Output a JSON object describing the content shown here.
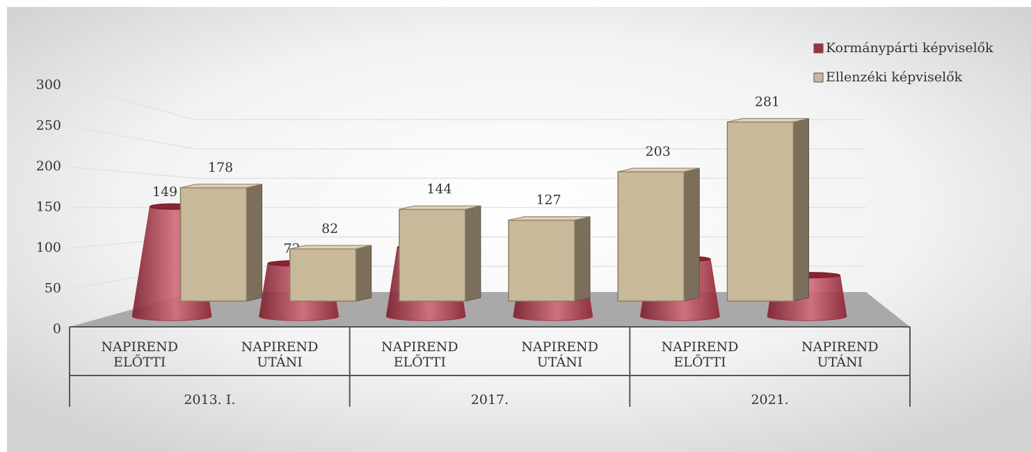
{
  "chart_data": {
    "type": "bar3d",
    "categories": [
      "NAPIREND ELŐTTI",
      "NAPIREND UTÁNI",
      "NAPIREND ELŐTTI",
      "NAPIREND UTÁNI",
      "NAPIREND ELŐTTI",
      "NAPIREND UTÁNI"
    ],
    "groups": [
      "2013. I.",
      "2017.",
      "2021."
    ],
    "series": [
      {
        "name": "Kormánypárti képviselők",
        "color": "#a3303f",
        "shape": "cone",
        "values": [
          149,
          72,
          94,
          30,
          78,
          56
        ]
      },
      {
        "name": "Ellenzéki képviselők",
        "color": "#c8b99a",
        "shape": "box",
        "values": [
          178,
          82,
          144,
          127,
          203,
          281
        ]
      }
    ],
    "ylim": [
      0,
      300
    ],
    "yticks": [
      0,
      50,
      100,
      150,
      200,
      250,
      300
    ],
    "grid": true,
    "legend": "top-right"
  }
}
